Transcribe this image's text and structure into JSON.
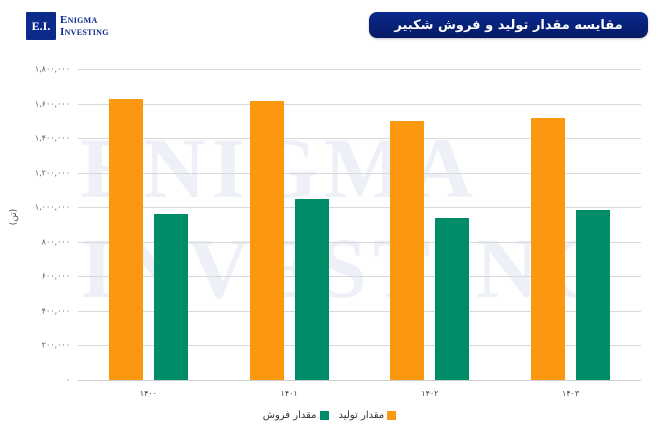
{
  "logo": {
    "mark": "E.I.",
    "line1": "Enigma",
    "line2": "Investing"
  },
  "title": "مقایسه مقدار تولید و فروش شکبیر",
  "watermark": {
    "line1": "ENIGMA",
    "line2": "INVESTING"
  },
  "colors": {
    "production": "#fc9710",
    "sales": "#008c68",
    "title_bg": "#0a2a8c",
    "grid": "#d9d9d9"
  },
  "y_ticks": [
    {
      "label": "۰",
      "value": 0
    },
    {
      "label": "۲۰۰,۰۰۰",
      "value": 200000
    },
    {
      "label": "۴۰۰,۰۰۰",
      "value": 400000
    },
    {
      "label": "۶۰۰,۰۰۰",
      "value": 600000
    },
    {
      "label": "۸۰۰,۰۰۰",
      "value": 800000
    },
    {
      "label": "۱,۰۰۰,۰۰۰",
      "value": 1000000
    },
    {
      "label": "۱,۲۰۰,۰۰۰",
      "value": 1200000
    },
    {
      "label": "۱,۴۰۰,۰۰۰",
      "value": 1400000
    },
    {
      "label": "۱,۶۰۰,۰۰۰",
      "value": 1600000
    },
    {
      "label": "۱,۸۰۰,۰۰۰",
      "value": 1800000
    }
  ],
  "y_label": "(تن)",
  "legend": {
    "production": "مقدار تولید",
    "sales": "مقدار فروش"
  },
  "chart_data": {
    "type": "bar",
    "title": "مقایسه مقدار تولید و فروش شکبیر",
    "categories": [
      "۱۴۰۰",
      "۱۴۰۱",
      "۱۴۰۲",
      "۱۴۰۳"
    ],
    "series": [
      {
        "name": "مقدار تولید",
        "color": "#fc9710",
        "values": [
          1625000,
          1615000,
          1500000,
          1515000
        ]
      },
      {
        "name": "مقدار فروش",
        "color": "#008c68",
        "values": [
          960000,
          1045000,
          935000,
          985000
        ]
      }
    ],
    "xlabel": "",
    "ylabel": "(تن)",
    "ylim": [
      0,
      1800000
    ],
    "grid": true,
    "legend_position": "bottom"
  }
}
